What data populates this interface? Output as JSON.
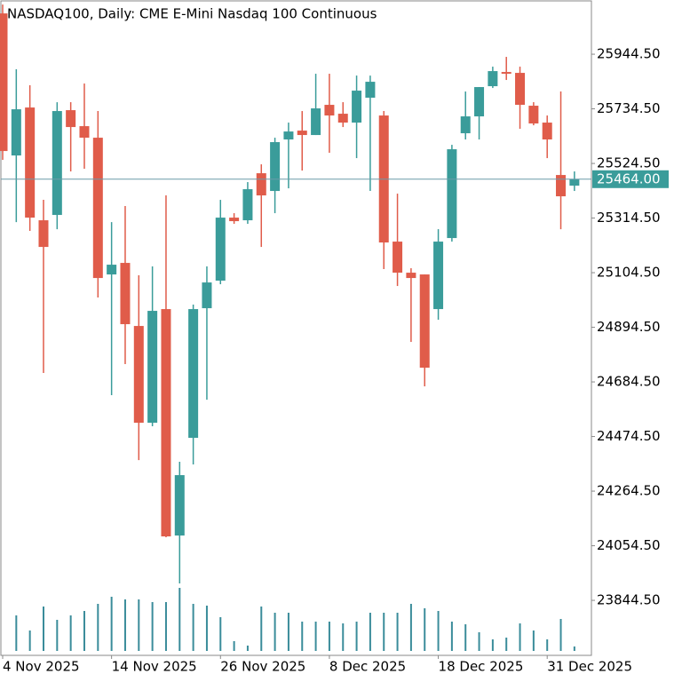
{
  "chart_data": {
    "type": "candlestick",
    "title": "NASDAQ100, Daily:  CME E-Mini Nasdaq 100 Continuous",
    "categories": [
      "4 Nov 2025",
      null,
      null,
      null,
      null,
      null,
      null,
      null,
      "14 Nov 2025",
      null,
      null,
      null,
      null,
      null,
      null,
      null,
      "26 Nov 2025",
      null,
      null,
      null,
      null,
      null,
      null,
      null,
      "8 Dec 2025",
      null,
      null,
      null,
      null,
      null,
      null,
      null,
      "18 Dec 2025",
      null,
      null,
      null,
      null,
      null,
      null,
      null,
      "31 Dec 2025",
      null,
      null
    ],
    "open": [
      26101.4,
      25555.2,
      25739.6,
      25306.0,
      25326.5,
      25729.4,
      25667.9,
      25623.5,
      25097.7,
      25142.1,
      24899.6,
      24527.4,
      24964.5,
      24093.8,
      24469.4,
      24967.9,
      25073.8,
      25316.2,
      25306.0,
      25486.9,
      25418.7,
      25616.7,
      25650.8,
      25633.8,
      25749.9,
      25715.7,
      25681.6,
      25777.2,
      25708.9,
      25224.0,
      25104.5,
      25097.7,
      24964.5,
      25237.7,
      25640.6,
      25705.5,
      25821.6,
      25876.2,
      25872.8,
      25746.5,
      25681.6,
      25480.1,
      25439.1
    ],
    "high": [
      26135.7,
      25886.5,
      25825.0,
      25384.5,
      25760.1,
      25760.1,
      25831.8,
      25726.0,
      25299.1,
      25360.6,
      25094.3,
      25128.4,
      25401.6,
      24377.2,
      24981.6,
      25128.4,
      25384.5,
      25333.3,
      25452.8,
      25521.1,
      25623.5,
      25681.6,
      25726.0,
      25869.4,
      25869.4,
      25760.1,
      25862.5,
      25862.5,
      25726.0,
      25408.4,
      25121.6,
      25097.7,
      25271.8,
      25596.2,
      25801.1,
      25818.2,
      25896.7,
      25934.3,
      25896.7,
      25760.1,
      25708.9,
      25801.1,
      25493.8
    ],
    "low": [
      25538.2,
      25299.1,
      25265.0,
      24718.7,
      25271.8,
      25493.8,
      25504.0,
      25008.9,
      24633.3,
      24752.8,
      24384.0,
      24513.8,
      24087.0,
      23909.4,
      24367.0,
      24616.2,
      25060.1,
      25292.3,
      25292.3,
      25203.5,
      25333.3,
      25428.9,
      25497.2,
      25633.8,
      25565.5,
      25664.5,
      25545.0,
      25418.7,
      25118.2,
      25053.3,
      24838.2,
      24667.4,
      24923.5,
      25224.0,
      25616.7,
      25616.7,
      25814.7,
      25845.5,
      25657.7,
      25671.3,
      25545.0,
      25271.8,
      25418.7
    ],
    "close": [
      25572.3,
      25732.8,
      25316.2,
      25203.5,
      25726.0,
      25664.5,
      25623.5,
      25084.0,
      25135.2,
      24906.5,
      24527.4,
      24957.7,
      24090.4,
      24326.0,
      24964.5,
      25066.9,
      25316.2,
      25302.6,
      25425.5,
      25401.6,
      25606.5,
      25647.4,
      25633.8,
      25736.2,
      25708.9,
      25681.6,
      25804.5,
      25838.6,
      25220.6,
      25104.5,
      25084.0,
      24739.1,
      25224.0,
      25579.1,
      25705.5,
      25818.2,
      25879.6,
      25869.4,
      25749.9,
      25678.2,
      25616.7,
      25398.2,
      25464
    ],
    "volume": [
      null,
      40,
      23,
      50,
      35,
      40,
      45,
      53,
      61,
      58,
      58,
      55,
      55,
      71,
      53,
      51,
      38,
      11,
      6,
      50,
      43,
      43,
      33,
      33,
      33,
      31,
      33,
      43,
      43,
      43,
      53,
      48,
      45,
      33,
      30,
      21,
      13,
      15,
      31,
      23,
      13,
      36,
      5
    ],
    "up_color": "#3a9c9a",
    "down_color": "#e05c4a",
    "volume_color": "#3a8c9a",
    "last_price": {
      "value": 25464,
      "label": "25464.00"
    },
    "ylim": [
      23633,
      26153
    ],
    "yticks": [
      {
        "value": 25944.5,
        "label": "25944.50"
      },
      {
        "value": 25734.5,
        "label": "25734.50"
      },
      {
        "value": 25524.5,
        "label": "25524.50"
      },
      {
        "value": 25314.5,
        "label": "25314.50"
      },
      {
        "value": 25104.5,
        "label": "25104.50"
      },
      {
        "value": 24894.5,
        "label": "24894.50"
      },
      {
        "value": 24684.5,
        "label": "24684.50"
      },
      {
        "value": 24474.5,
        "label": "24474.50"
      },
      {
        "value": 24264.5,
        "label": "24264.50"
      },
      {
        "value": 24054.5,
        "label": "24054.50"
      },
      {
        "value": 23844.5,
        "label": "23844.50"
      }
    ]
  }
}
